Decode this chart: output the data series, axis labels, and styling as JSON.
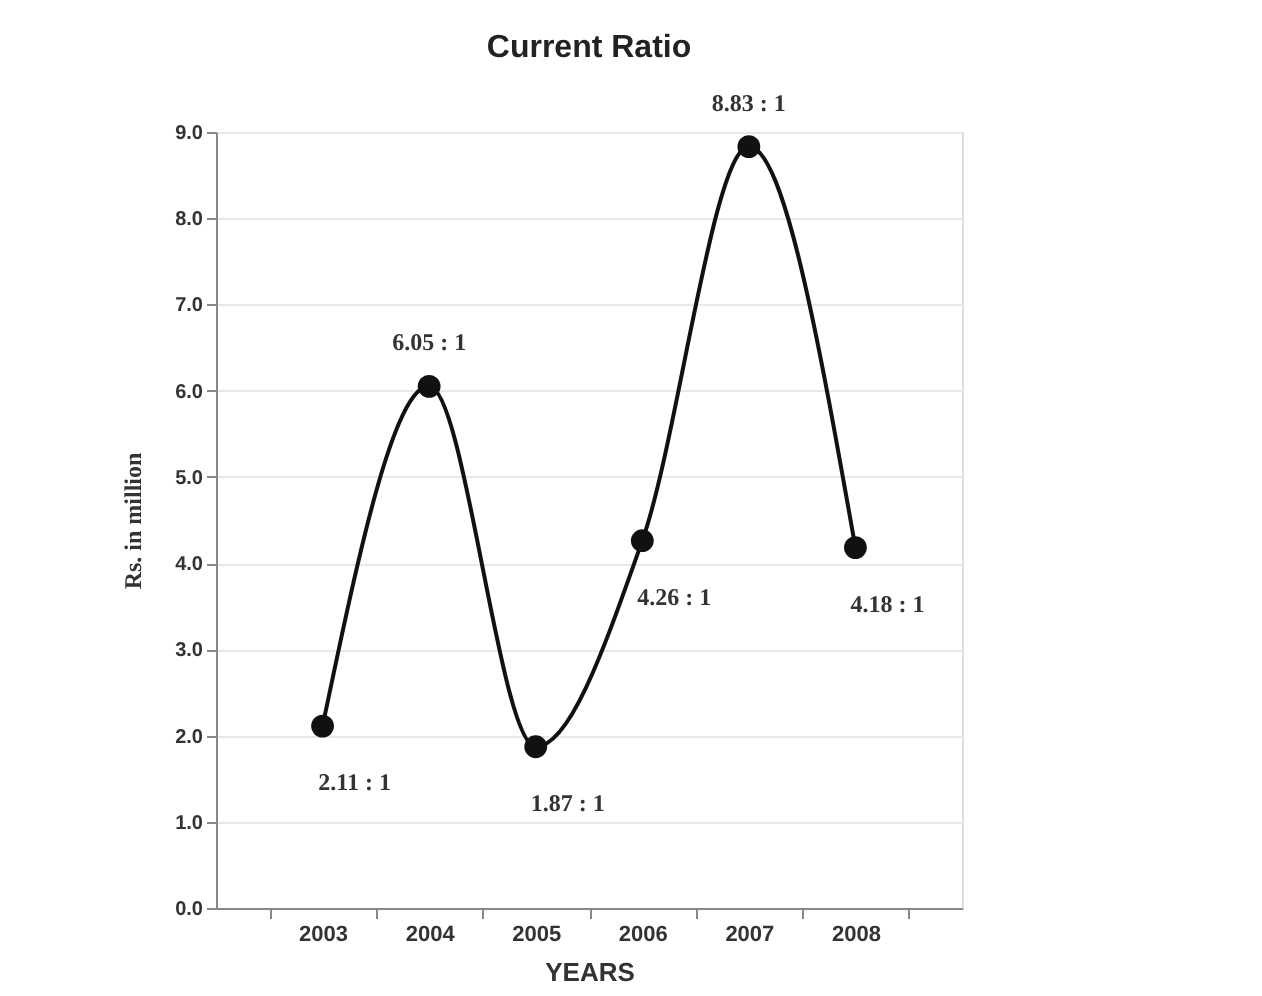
{
  "chart_data": {
    "type": "line",
    "title": "Current Ratio",
    "xlabel": "YEARS",
    "ylabel": "Rs. in million",
    "categories": [
      "2003",
      "2004",
      "2005",
      "2006",
      "2007",
      "2008"
    ],
    "series": [
      {
        "color": "#111111",
        "values": [
          2.11,
          6.05,
          1.87,
          4.26,
          8.83,
          4.18
        ],
        "value_labels": [
          "2.11 : 1",
          "6.05 : 1",
          "1.87 : 1",
          "4.26 : 1",
          "8.83 : 1",
          "4.18 : 1"
        ]
      }
    ],
    "ylim": [
      0,
      9
    ],
    "yticks": [
      {
        "value": 0,
        "label": "0.0"
      },
      {
        "value": 1,
        "label": "1.0"
      },
      {
        "value": 2,
        "label": "2.0"
      },
      {
        "value": 3,
        "label": "3.0"
      },
      {
        "value": 4,
        "label": "4.0"
      },
      {
        "value": 5,
        "label": "5.0"
      },
      {
        "value": 6,
        "label": "6.0"
      },
      {
        "value": 7,
        "label": "7.0"
      },
      {
        "value": 8,
        "label": "8.0"
      },
      {
        "value": 9,
        "label": "9.0"
      }
    ],
    "grid": "y",
    "marker": "circle",
    "line_style": "solid"
  }
}
